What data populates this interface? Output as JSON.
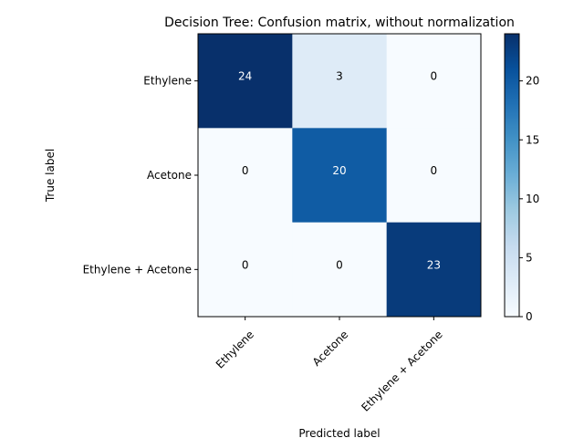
{
  "chart_data": {
    "type": "heatmap",
    "title": "Decision Tree: Confusion matrix, without normalization",
    "xlabel": "Predicted label",
    "ylabel": "True label",
    "x_categories": [
      "Ethylene",
      "Acetone",
      "Ethylene + Acetone"
    ],
    "y_categories": [
      "Ethylene",
      "Acetone",
      "Ethylene + Acetone"
    ],
    "values": [
      [
        24,
        3,
        0
      ],
      [
        0,
        20,
        0
      ],
      [
        0,
        0,
        23
      ]
    ],
    "colormap": "Blues",
    "colorbar": {
      "min": 0,
      "max": 24,
      "ticks": [
        "0",
        "5",
        "10",
        "15",
        "20"
      ]
    },
    "text_colors": {
      "light": "#ffffff",
      "dark": "#000000"
    }
  }
}
